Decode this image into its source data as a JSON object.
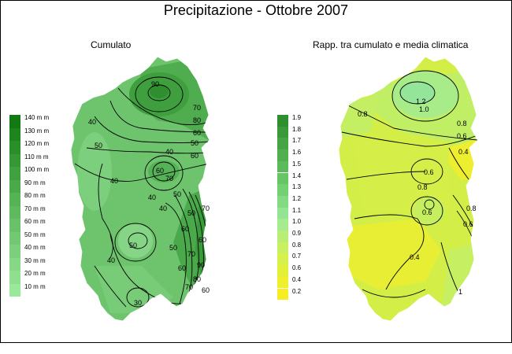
{
  "title": "Precipitazione - Ottobre 2007",
  "left_panel": {
    "subtitle": "Cumulato",
    "legend": [
      {
        "label": "140 m m",
        "color": "#137a13"
      },
      {
        "label": "130 m m",
        "color": "#1e841e"
      },
      {
        "label": "120 m m",
        "color": "#298f29"
      },
      {
        "label": "110 m m",
        "color": "#359835"
      },
      {
        "label": "100 m m",
        "color": "#40a140"
      },
      {
        "label": "90 m m",
        "color": "#4aaa4a"
      },
      {
        "label": "80 m m",
        "color": "#55b255"
      },
      {
        "label": "70 m m",
        "color": "#5fba5f"
      },
      {
        "label": "60 m m",
        "color": "#69c169"
      },
      {
        "label": "50 m m",
        "color": "#73c873"
      },
      {
        "label": "40 m m",
        "color": "#7ccf7c"
      },
      {
        "label": "30 m m",
        "color": "#86d786"
      },
      {
        "label": "20 m m",
        "color": "#90df90"
      },
      {
        "label": "10 m m",
        "color": "#9ae89a"
      }
    ],
    "contour_labels": [
      "90",
      "80",
      "70",
      "60",
      "50",
      "40",
      "50",
      "60",
      "70",
      "60",
      "50",
      "40",
      "40",
      "40",
      "50",
      "60",
      "70",
      "80",
      "50",
      "60",
      "70",
      "90",
      "70",
      "60",
      "50",
      "40",
      "30",
      "40",
      "60"
    ]
  },
  "right_panel": {
    "subtitle": "Rapp. tra cumulato e media climatica",
    "legend": [
      {
        "label": "1.9",
        "color": "#2f8f2f"
      },
      {
        "label": "1.8",
        "color": "#3a9a3a"
      },
      {
        "label": "1.7",
        "color": "#45a545"
      },
      {
        "label": "1.6",
        "color": "#50b050"
      },
      {
        "label": "1.5",
        "color": "#5bbb5b"
      },
      {
        "label": "1.4",
        "color": "#66c666"
      },
      {
        "label": "1.3",
        "color": "#73d073"
      },
      {
        "label": "1.2",
        "color": "#82da82"
      },
      {
        "label": "1.1",
        "color": "#94e494"
      },
      {
        "label": "1.0",
        "color": "#a5ec8f"
      },
      {
        "label": "0.9",
        "color": "#b6ee76"
      },
      {
        "label": "0.8",
        "color": "#c8f060"
      },
      {
        "label": "0.7",
        "color": "#d6f04c"
      },
      {
        "label": "0.6",
        "color": "#e2f03a"
      },
      {
        "label": "0.4",
        "color": "#eef02e"
      },
      {
        "label": "0.2",
        "color": "#f6ee22"
      }
    ],
    "contour_labels": [
      "1.2",
      "1.0",
      "0.8",
      "0.8",
      "0.6",
      "0.4",
      "0.6",
      "0.8",
      "0.6",
      "0.4",
      "0.6",
      "0.8",
      "1"
    ]
  }
}
